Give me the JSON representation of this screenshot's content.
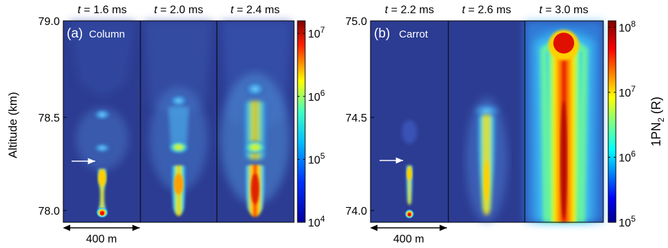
{
  "colors": {
    "background_low": "#2b3a8f",
    "jet_colormap": [
      "#00008f",
      "#0000ff",
      "#0080ff",
      "#00ffff",
      "#80ff80",
      "#ffff00",
      "#ff8000",
      "#ff0000",
      "#800000"
    ],
    "arrow": "#ffffff"
  },
  "y_axis_label": "Altitude  (km)",
  "chart_data": [
    {
      "type": "heatmap",
      "panel_label": "(a)",
      "panel_name": "Column",
      "ylim": [
        77.9,
        79.0
      ],
      "yticks": [
        "79.0",
        "78.5",
        "78.0"
      ],
      "ytick_values": [
        79.0,
        78.5,
        78.0
      ],
      "time_prefix": "t",
      "frames": [
        {
          "label": " = 1.6 ms",
          "time_ms": 1.6
        },
        {
          "label": " = 2.0 ms",
          "time_ms": 2.0
        },
        {
          "label": " = 2.4 ms",
          "time_ms": 2.4
        }
      ],
      "scale_bar": "400 m",
      "colorbar": {
        "scale": "log",
        "min_exp": 4,
        "max_exp": 7.2,
        "tick_exps": [
          4,
          5,
          6,
          7
        ],
        "tick_base": "10",
        "tick_labels": [
          "4",
          "5",
          "6",
          "7"
        ],
        "label": ""
      }
    },
    {
      "type": "heatmap",
      "panel_label": "(b)",
      "panel_name": "Carrot",
      "ylim": [
        73.9,
        75.0
      ],
      "yticks": [
        "75.0",
        "74.5",
        "74.0"
      ],
      "ytick_values": [
        75.0,
        74.5,
        74.0
      ],
      "time_prefix": "t",
      "frames": [
        {
          "label": " = 2.2 ms",
          "time_ms": 2.2
        },
        {
          "label": " = 2.6 ms",
          "time_ms": 2.6
        },
        {
          "label": " = 3.0 ms",
          "time_ms": 3.0
        }
      ],
      "scale_bar": "400 m",
      "colorbar": {
        "scale": "log",
        "min_exp": 5,
        "max_exp": 8.1,
        "tick_exps": [
          5,
          6,
          7,
          8
        ],
        "tick_base": "10",
        "tick_labels": [
          "5",
          "6",
          "7",
          "8"
        ],
        "label_main": "1PN",
        "label_sub": "2",
        "label_unit": " (R)"
      }
    }
  ]
}
